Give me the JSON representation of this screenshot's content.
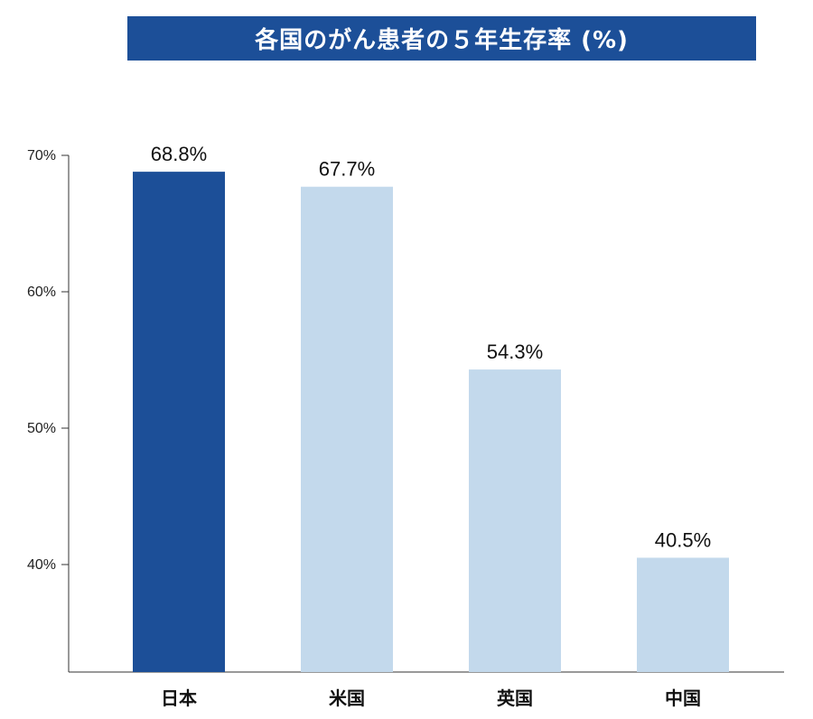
{
  "chart_data": {
    "type": "bar",
    "title": "各国のがん患者の５年生存率 (%)",
    "categories": [
      "日本",
      "米国",
      "英国",
      "中国"
    ],
    "values": [
      68.8,
      67.7,
      54.3,
      40.5
    ],
    "data_labels": [
      "68.8%",
      "67.7%",
      "54.3%",
      "40.5%"
    ],
    "yticks": [
      40,
      50,
      60,
      70
    ],
    "ytick_labels": [
      "40%",
      "50%",
      "60%",
      "70%"
    ],
    "ylim": [
      32,
      70
    ],
    "grid": false,
    "colors": {
      "title_background": "#1c4f98",
      "highlight_bar": "#1c4f98",
      "other_bars": "#c3d9ec",
      "axis": "#333333"
    },
    "highlight_index": 0
  }
}
